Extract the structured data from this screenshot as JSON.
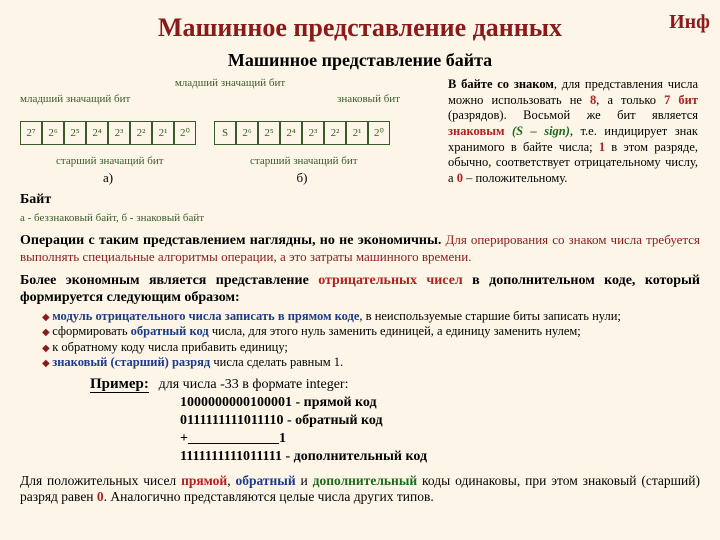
{
  "corner": "Инф",
  "title": "Машинное представление данных",
  "subtitle": "Машинное представление байта",
  "diagram": {
    "lbl_mlad": "младший значащий бит",
    "lbl_znak": "знаковый бит",
    "lbl_mlad2": "младший значащий бит",
    "lbl_star_a": "старший значащий бит",
    "lbl_star_b": "старший значащий бит",
    "caption_a": "а)",
    "caption_b": "б)",
    "byte_label": "Байт",
    "footnote": "а - беззнаковый байт, б - знаковый байт",
    "cells_a": [
      "2⁷",
      "2⁶",
      "2⁵",
      "2⁴",
      "2³",
      "2²",
      "2¹",
      "2⁰"
    ],
    "cells_b": [
      "S",
      "2⁶",
      "2⁵",
      "2⁴",
      "2³",
      "2²",
      "2¹",
      "2⁰"
    ],
    "cell_border": "#3a5a2a"
  },
  "right_paragraph": {
    "t1": "В байте со знаком",
    "t2": ", для пред­ставления числа можно ис­пользовать не ",
    "n8": "8",
    "t3": ", а только ",
    "n7": "7 бит",
    "t4": " (разрядов). Восьмой же бит является ",
    "znak": "знаковым ",
    "sign": "(S – sign)",
    "t5": ", т.е. индицирует знак хранимого в байте числа; ",
    "n1": "1",
    "t6": " в этом разряде, обычно, соответствует отрица­тельному числу, а ",
    "n0": "0",
    "t7": " – положи­тельному."
  },
  "p1": {
    "a": "Операции с таким представлением наглядны, но не экономичны.",
    "b": " Для оперирования со знаком числа требуется выполнять специальные алгоритмы операции, а это затраты машинного времени."
  },
  "p2": {
    "a": "Более экономным является представление ",
    "b": "отрицательных чисел",
    "c": " в дополнительном коде, который формируется следующим образом:"
  },
  "bullets": {
    "b1a": "модуль отрицательного числа записать в прямом коде",
    "b1b": ", в неиспользуемые старшие биты записать нули;",
    "b2a": "сформировать ",
    "b2b": "обратный код",
    "b2c": " числа, для этого нуль заменить единицей, а единицу заменить нулем;",
    "b3": "к обратному коду числа прибавить единицу;",
    "b4a": "знаковый (старший) разряд",
    "b4b": " числа сделать равным 1."
  },
  "example": {
    "label": "Пример:",
    "intro": "для числа -33 в формате integer:",
    "l1": "1000000000100001 - прямой код",
    "l2": "0111111111011110 - обратный код",
    "l3": "+_____________1",
    "l4": "1111111111011111 - дополнительный код"
  },
  "p3": {
    "a": "Для положительных чисел ",
    "b": "прямой",
    "c": ", ",
    "d": "обратный",
    "e": " и ",
    "f": "дополнительный",
    "g": " коды одинаковы, при этом знаковый (старший) разряд равен ",
    "n0": "0",
    "h": ". Аналогично представляются целые числа других типов."
  },
  "colors": {
    "background": "#fdf6e8",
    "title": "#8b1a1a",
    "red": "#b02020",
    "blue": "#1a3a8a",
    "green": "#1a6a1a"
  }
}
